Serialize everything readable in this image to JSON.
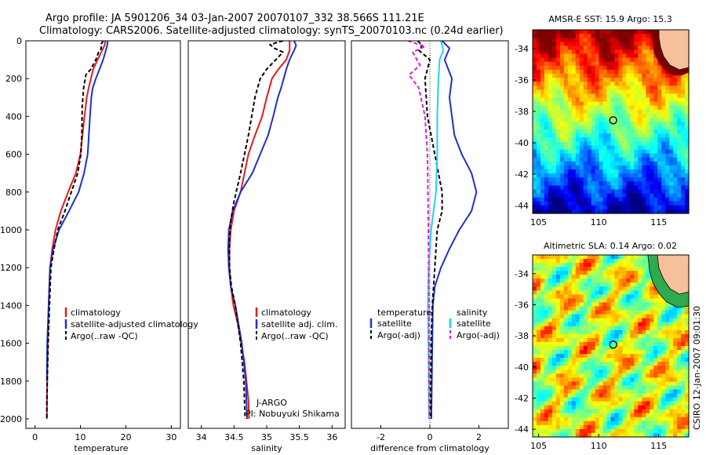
{
  "header": {
    "title_line1": "Argo profile: JA 5901206_34 03-Jan-2007 20070107_332 38.566S 111.21E",
    "title_line2": "Climatology: CARS2006. Satellite-adjusted climatology: synTS_20070103.nc (0.24d earlier)"
  },
  "colors": {
    "climatology": "#e41a1c",
    "satellite": "#1f2fcc",
    "argo": "#000000",
    "salinity_satellite": "#22d4e8",
    "argo_salinity_adj": "#d81fd8",
    "land": "#f6c09a"
  },
  "chart_data": [
    {
      "type": "line",
      "name": "temperature-panel",
      "xlabel": "temperature",
      "ylabel": "",
      "xlim": [
        -2,
        32
      ],
      "ylim": [
        2050,
        0
      ],
      "y_reversed": true,
      "xticks": [
        0,
        10,
        20,
        30
      ],
      "yticks": [
        0,
        200,
        400,
        600,
        800,
        1000,
        1200,
        1400,
        1600,
        1800,
        2000
      ],
      "legend": [
        "climatology",
        "satellite-adjusted climatology",
        "Argo(..raw -QC)"
      ],
      "series": [
        {
          "name": "climatology",
          "color": "#e41a1c",
          "style": "solid",
          "x": [
            15.5,
            15.3,
            14.8,
            13.8,
            12.8,
            12.3,
            11.8,
            11.4,
            10.9,
            10.0,
            9.0,
            7.3,
            5.7,
            4.5,
            3.8,
            3.3,
            3.0,
            2.8,
            2.7,
            2.6
          ],
          "y": [
            0,
            25,
            50,
            100,
            150,
            200,
            250,
            300,
            400,
            600,
            700,
            800,
            900,
            1000,
            1100,
            1200,
            1400,
            1600,
            1800,
            2000
          ]
        },
        {
          "name": "satellite-adjusted climatology",
          "color": "#1f2fcc",
          "style": "solid",
          "x": [
            16.0,
            15.9,
            15.6,
            15.0,
            14.2,
            13.4,
            12.7,
            12.4,
            12.1,
            11.6,
            10.8,
            9.6,
            7.5,
            5.3,
            4.0,
            3.3,
            3.0,
            2.7,
            2.6
          ],
          "y": [
            0,
            25,
            50,
            100,
            150,
            200,
            250,
            300,
            400,
            600,
            700,
            800,
            900,
            1000,
            1100,
            1200,
            1400,
            1600,
            1800
          ]
        },
        {
          "name": "Argo(..raw -QC)",
          "color": "#000000",
          "style": "dashed",
          "x": [
            15.0,
            14.5,
            14.6,
            14.0,
            13.4,
            12.3,
            11.2,
            10.7,
            10.4,
            10.3,
            10.1,
            9.4,
            8.0,
            6.6,
            5.0,
            4.2,
            3.5,
            3.2,
            2.9,
            2.7,
            2.6,
            2.6
          ],
          "y": [
            0,
            20,
            40,
            60,
            100,
            150,
            180,
            250,
            350,
            500,
            600,
            700,
            800,
            900,
            1000,
            1100,
            1200,
            1400,
            1600,
            1800,
            1900,
            2000
          ]
        }
      ]
    },
    {
      "type": "line",
      "name": "salinity-panel",
      "xlabel": "salinity",
      "ylabel": "",
      "xlim": [
        33.8,
        36.2
      ],
      "ylim": [
        2050,
        0
      ],
      "y_reversed": true,
      "xticks": [
        34,
        34.5,
        35,
        35.5,
        36
      ],
      "legend": [
        "climatology",
        "satellite adj. clim.",
        "Argo(..raw -QC)"
      ],
      "annotation_lines": [
        "J-ARGO",
        "PI: Nobuyuki Shikama"
      ],
      "series": [
        {
          "name": "climatology",
          "color": "#e41a1c",
          "style": "solid",
          "x": [
            35.35,
            35.35,
            35.3,
            35.18,
            35.08,
            35.0,
            34.93,
            34.82,
            34.72,
            34.6,
            34.5,
            34.45,
            34.43,
            34.43,
            34.45,
            34.49,
            34.56,
            34.66,
            34.72,
            34.73
          ],
          "y": [
            0,
            50,
            100,
            150,
            200,
            300,
            400,
            500,
            600,
            800,
            900,
            1000,
            1100,
            1200,
            1300,
            1400,
            1500,
            1700,
            1900,
            2000
          ]
        },
        {
          "name": "satellite adj. clim.",
          "color": "#1f2fcc",
          "style": "solid",
          "x": [
            35.42,
            35.45,
            35.42,
            35.35,
            35.3,
            35.26,
            35.22,
            35.17,
            35.1,
            35.02,
            34.9,
            34.78,
            34.6,
            34.48,
            34.42,
            34.41,
            34.42,
            34.45,
            34.52,
            34.62,
            34.68,
            34.7
          ],
          "y": [
            0,
            25,
            50,
            100,
            150,
            200,
            250,
            300,
            400,
            500,
            600,
            700,
            800,
            900,
            1000,
            1100,
            1200,
            1300,
            1400,
            1600,
            1800,
            2000
          ]
        },
        {
          "name": "Argo(..raw -QC)",
          "color": "#000000",
          "style": "dashed",
          "x": [
            35.25,
            35.05,
            35.12,
            35.25,
            35.0,
            34.9,
            34.82,
            34.72,
            34.6,
            34.5,
            34.45,
            34.43,
            34.43,
            34.46,
            34.52,
            34.6,
            34.65,
            34.67
          ],
          "y": [
            0,
            20,
            40,
            60,
            150,
            200,
            300,
            500,
            700,
            850,
            950,
            1050,
            1200,
            1300,
            1400,
            1600,
            1800,
            2000
          ]
        }
      ]
    },
    {
      "type": "line",
      "name": "difference-panel",
      "xlabel": "difference from climatology",
      "ylabel": "",
      "xlim": [
        -3.2,
        3.2
      ],
      "ylim": [
        2050,
        0
      ],
      "y_reversed": true,
      "xticks": [
        -2,
        0,
        2
      ],
      "legend_left": {
        "heading": "temperature",
        "items": [
          "satellite",
          "Argo(-adj)"
        ]
      },
      "legend_right": {
        "heading": "salinity",
        "items": [
          "satellite",
          "Argo(-adj)"
        ]
      },
      "series": [
        {
          "name": "temperature satellite",
          "color": "#1f2fcc",
          "style": "solid",
          "x": [
            0.5,
            0.8,
            0.6,
            0.9,
            0.8,
            0.9,
            1.0,
            1.3,
            1.7,
            1.9,
            1.7,
            1.2,
            0.8,
            0.45,
            0.2,
            0.12,
            0.1,
            0.08,
            0.06
          ],
          "y": [
            0,
            40,
            100,
            200,
            300,
            400,
            500,
            600,
            700,
            800,
            900,
            1000,
            1100,
            1200,
            1300,
            1400,
            1600,
            1800,
            2000
          ]
        },
        {
          "name": "temperature Argo(-adj)",
          "color": "#000000",
          "style": "dashed",
          "x": [
            -0.5,
            -0.3,
            -0.45,
            0.0,
            -0.2,
            -0.1,
            0.2,
            0.35,
            0.5,
            0.5,
            0.3,
            0.25,
            0.2,
            0.1,
            0.05,
            0.03
          ],
          "y": [
            0,
            25,
            50,
            100,
            200,
            400,
            600,
            700,
            800,
            900,
            1000,
            1100,
            1200,
            1400,
            1600,
            2000
          ]
        },
        {
          "name": "salinity satellite",
          "color": "#22d4e8",
          "style": "solid",
          "x": [
            0.45,
            0.55,
            0.4,
            0.35,
            0.3,
            0.3,
            0.25,
            0.15,
            0.05,
            -0.05,
            -0.08,
            -0.06,
            -0.04
          ],
          "y": [
            0,
            50,
            100,
            200,
            400,
            600,
            800,
            900,
            1000,
            1200,
            1400,
            1600,
            2000
          ]
        },
        {
          "name": "salinity Argo(-adj)",
          "color": "#d81fd8",
          "style": "dashed",
          "x": [
            -0.9,
            -0.2,
            -0.7,
            -0.4,
            -0.85,
            -0.45,
            -0.2,
            -0.1,
            -0.08,
            -0.06,
            -0.04,
            -0.03
          ],
          "y": [
            0,
            30,
            60,
            130,
            180,
            250,
            400,
            600,
            800,
            1000,
            1400,
            2000
          ]
        }
      ]
    },
    {
      "type": "heatmap",
      "name": "sst-map",
      "title": "AMSR-E SST: 15.9 Argo: 15.3",
      "xlim": [
        104.5,
        117.5
      ],
      "ylim": [
        -44.5,
        -32.8
      ],
      "xticks": [
        105,
        110,
        115
      ],
      "yticks": [
        -34,
        -36,
        -38,
        -40,
        -42,
        -44
      ],
      "profile_location": {
        "lon": 111.21,
        "lat": -38.566
      },
      "colormap": "jet",
      "values_c": [
        [
          19.0,
          18.8,
          18.5,
          18.2,
          18.0,
          17.8,
          17.6,
          17.4,
          17.2,
          17.0,
          16.8,
          16.6,
          16.5,
          16.4,
          16.3,
          16.2,
          16.1,
          16.0,
          16.0,
          15.9,
          15.8,
          15.7,
          15.6,
          15.5,
          15.4,
          15.2,
          15.0,
          14.7,
          14.4,
          14.0,
          13.7,
          13.3,
          13.0,
          12.7,
          12.4,
          12.2,
          12.0,
          11.8,
          11.6,
          11.4,
          11.2,
          11.0,
          10.8,
          10.6
        ]
      ]
    },
    {
      "type": "heatmap",
      "name": "sla-map",
      "title": "Altimetric SLA: 0.14 Argo: 0.02",
      "xlim": [
        104.5,
        117.5
      ],
      "ylim": [
        -44.5,
        -32.8
      ],
      "xticks": [
        105,
        110,
        115
      ],
      "yticks": [
        -34,
        -36,
        -38,
        -40,
        -42,
        -44
      ],
      "profile_location": {
        "lon": 111.21,
        "lat": -38.566
      },
      "colormap": "jet"
    }
  ],
  "credit": "CSIRO 12-Jan-2007 09:01:30"
}
